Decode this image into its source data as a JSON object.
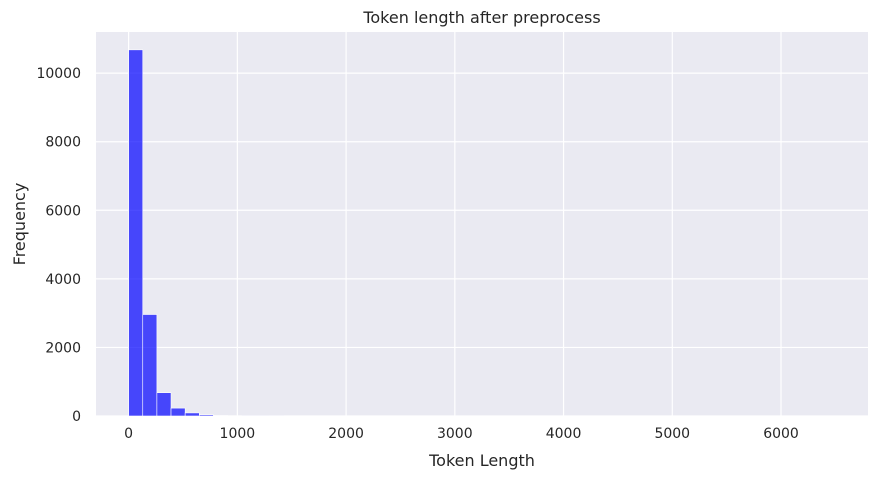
{
  "chart_data": {
    "type": "bar",
    "title": "Token length after preprocess",
    "xlabel": "Token Length",
    "ylabel": "Frequency",
    "xlim": [
      -300,
      6800
    ],
    "ylim": [
      0,
      11200
    ],
    "x_ticks": [
      0,
      1000,
      2000,
      3000,
      4000,
      5000,
      6000
    ],
    "y_ticks": [
      0,
      2000,
      4000,
      6000,
      8000,
      10000
    ],
    "grid": true,
    "colors": {
      "bar": "#0000ff",
      "background": "#eaeaf2",
      "grid": "#ffffff"
    },
    "bins": [
      {
        "x0": 0,
        "x1": 130,
        "count": 10680
      },
      {
        "x0": 130,
        "x1": 260,
        "count": 2960
      },
      {
        "x0": 260,
        "x1": 390,
        "count": 680
      },
      {
        "x0": 390,
        "x1": 520,
        "count": 230
      },
      {
        "x0": 520,
        "x1": 650,
        "count": 90
      },
      {
        "x0": 650,
        "x1": 780,
        "count": 35
      },
      {
        "x0": 780,
        "x1": 910,
        "count": 15
      },
      {
        "x0": 910,
        "x1": 1040,
        "count": 7
      },
      {
        "x0": 1040,
        "x1": 1170,
        "count": 4
      },
      {
        "x0": 1170,
        "x1": 1300,
        "count": 2
      },
      {
        "x0": 1300,
        "x1": 1430,
        "count": 1
      }
    ]
  }
}
